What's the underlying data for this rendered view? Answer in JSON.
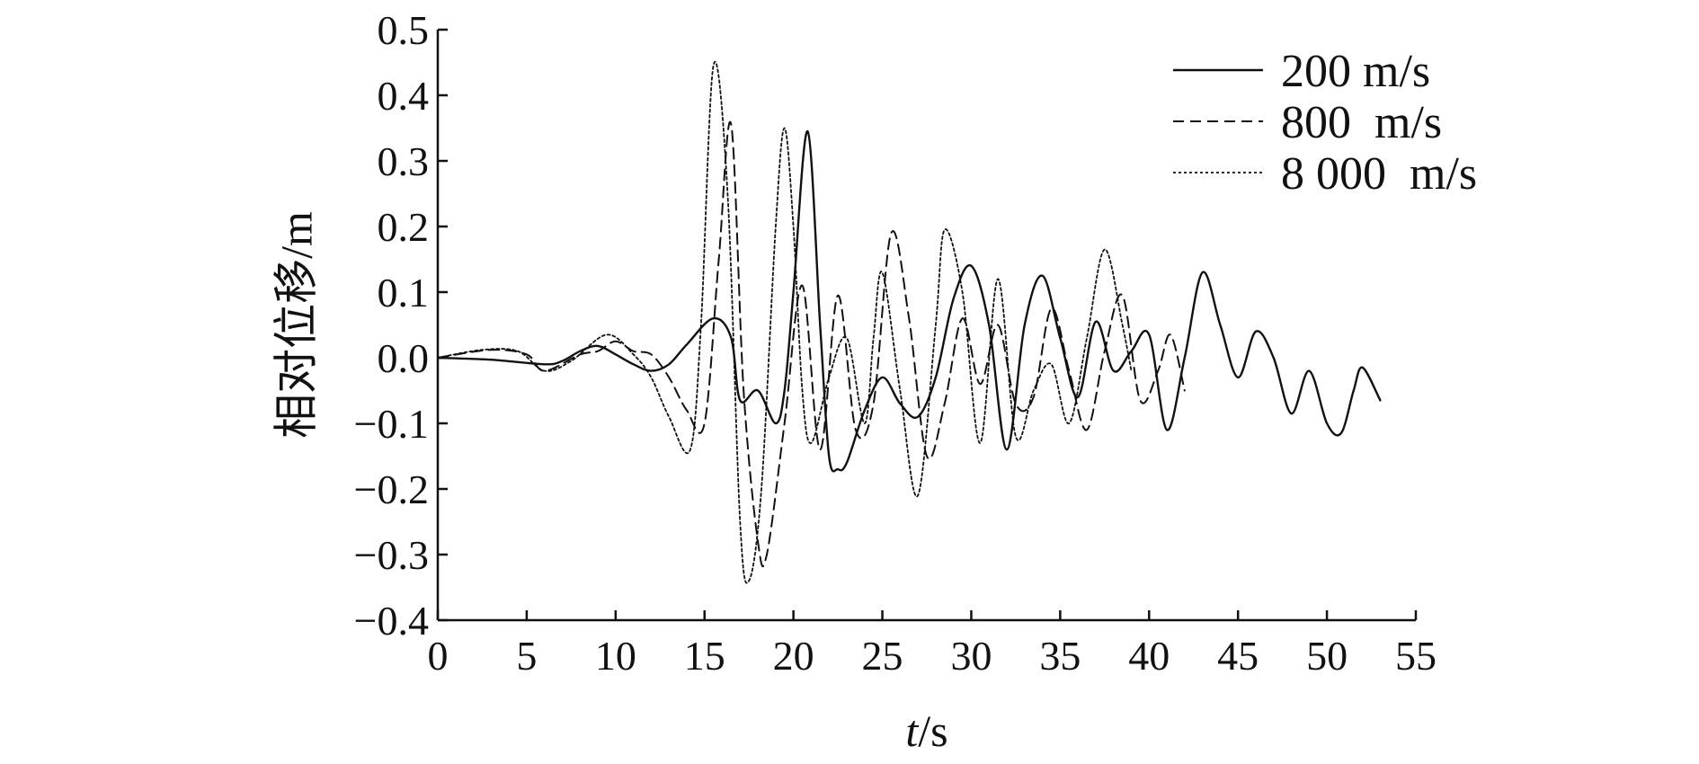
{
  "chart_data": {
    "type": "line",
    "title": "",
    "xlabel_italic": "t",
    "xlabel_unit": "/s",
    "ylabel": "相对位移/m",
    "xlim": [
      0,
      55
    ],
    "ylim": [
      -0.4,
      0.5
    ],
    "xticks": [
      0,
      5,
      10,
      15,
      20,
      25,
      30,
      35,
      40,
      45,
      50,
      55
    ],
    "xtick_labels": [
      "0",
      "5",
      "10",
      "15",
      "20",
      "25",
      "30",
      "35",
      "40",
      "45",
      "50",
      "55"
    ],
    "yticks": [
      -0.4,
      -0.3,
      -0.2,
      -0.1,
      0.0,
      0.1,
      0.2,
      0.3,
      0.4,
      0.5
    ],
    "ytick_labels": [
      "−0.4",
      "−0.3",
      "−0.2",
      "−0.1",
      "0.0",
      "0.1",
      "0.2",
      "0.3",
      "0.4",
      "0.5"
    ],
    "grid": false,
    "legend_position": "top-right",
    "series": [
      {
        "name": "200 m/s",
        "style": "solid",
        "color": "#111111",
        "x": [
          0,
          3,
          6,
          7,
          8,
          9,
          10,
          11,
          12,
          13,
          14,
          15.5,
          16.5,
          17,
          18,
          19,
          19.5,
          20,
          20.8,
          21.5,
          22,
          22.5,
          23,
          24,
          25,
          26,
          27,
          28,
          29,
          30,
          31,
          32,
          33,
          34,
          35,
          36,
          37,
          38,
          39,
          40,
          41,
          42,
          43,
          44,
          45,
          46,
          47,
          48,
          49,
          50,
          50.8,
          51.5,
          52,
          53
        ],
        "y": [
          0,
          -0.003,
          -0.01,
          -0.005,
          0.01,
          0.018,
          0.005,
          -0.01,
          -0.02,
          -0.01,
          0.02,
          0.06,
          0.03,
          -0.065,
          -0.05,
          -0.1,
          -0.05,
          0.1,
          0.345,
          0.05,
          -0.15,
          -0.17,
          -0.16,
          -0.08,
          -0.03,
          -0.07,
          -0.09,
          -0.03,
          0.09,
          0.14,
          0.05,
          -0.14,
          0.05,
          0.125,
          0.03,
          -0.06,
          0.055,
          -0.02,
          0.01,
          0.035,
          -0.11,
          0.0,
          0.13,
          0.05,
          -0.03,
          0.04,
          0.0,
          -0.085,
          -0.02,
          -0.1,
          -0.115,
          -0.05,
          -0.015,
          -0.065
        ]
      },
      {
        "name": "800  m/s",
        "style": "dashed",
        "color": "#111111",
        "x": [
          0,
          3,
          5,
          6,
          8,
          9,
          10,
          11,
          12,
          13,
          14,
          15,
          15.8,
          16.5,
          17.2,
          18,
          18.5,
          19.5,
          20.5,
          21.5,
          22.5,
          23.5,
          24.5,
          25.5,
          26.5,
          27.5,
          28.5,
          29.5,
          30.5,
          31.5,
          32.5,
          33.5,
          34.5,
          35.5,
          36.5,
          37.5,
          38.5,
          39.5,
          40.5,
          41.2,
          42
        ],
        "y": [
          0,
          0.012,
          0.005,
          -0.02,
          0.005,
          0.01,
          0.025,
          0.01,
          0.005,
          -0.03,
          -0.08,
          -0.1,
          0.15,
          0.355,
          -0.05,
          -0.28,
          -0.3,
          -0.1,
          0.11,
          -0.14,
          0.095,
          -0.11,
          -0.07,
          0.19,
          0.06,
          -0.15,
          -0.07,
          0.06,
          -0.04,
          0.05,
          -0.07,
          -0.06,
          0.075,
          -0.02,
          -0.11,
          0.01,
          0.095,
          -0.065,
          -0.02,
          0.035,
          -0.05
        ]
      },
      {
        "name": "8 000  m/s",
        "style": "dotted",
        "color": "#111111",
        "x": [
          0,
          2.5,
          4.5,
          6,
          7.5,
          9.5,
          11,
          12,
          13,
          14.2,
          14.8,
          15.5,
          16.3,
          17,
          17.5,
          18.2,
          19,
          19.5,
          20,
          20.5,
          21,
          22,
          23,
          24,
          24.5,
          25,
          26,
          27,
          28,
          28.5,
          29.5,
          30.5,
          31.5,
          32.5,
          33.5,
          34.5,
          35.5,
          36.5,
          37.5,
          38.5,
          39
        ],
        "y": [
          0,
          0.012,
          0.01,
          -0.02,
          -0.005,
          0.035,
          0.005,
          -0.03,
          -0.09,
          -0.14,
          0.05,
          0.445,
          0.25,
          -0.25,
          -0.34,
          -0.2,
          0.2,
          0.35,
          0.2,
          -0.05,
          -0.13,
          -0.03,
          0.03,
          -0.1,
          0.03,
          0.13,
          -0.05,
          -0.21,
          0.05,
          0.195,
          0.1,
          -0.13,
          0.12,
          -0.12,
          -0.05,
          -0.01,
          -0.1,
          0.03,
          0.165,
          0.05,
          -0.02
        ]
      }
    ]
  }
}
